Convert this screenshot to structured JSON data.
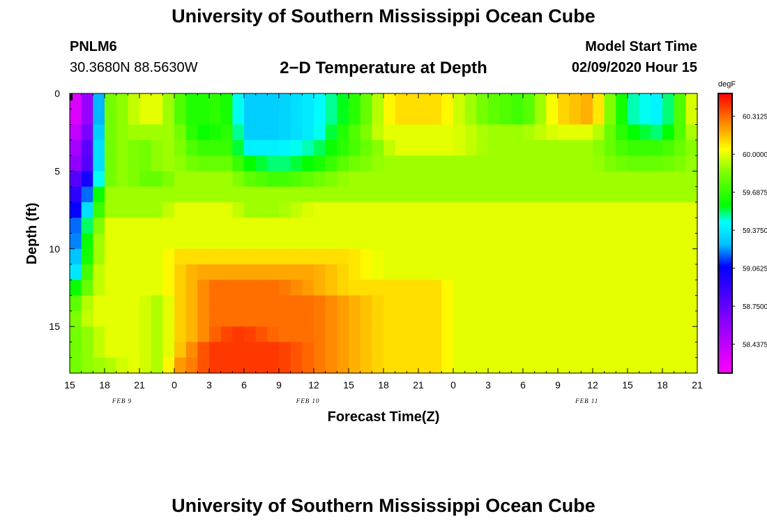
{
  "page": {
    "title": "University of Southern Mississippi Ocean Cube",
    "bottom_title": "University of Southern Mississippi Ocean Cube",
    "station": "PNLM6",
    "coords": "30.3680N 88.5630W",
    "plot_title": "2−D Temperature at Depth",
    "start_label": "Model Start Time",
    "start_value": "02/09/2020 Hour 15"
  },
  "chart_data": {
    "type": "heatmap",
    "title": "2−D Temperature at Depth",
    "xlabel": "Forecast Time(Z)",
    "ylabel": "Depth (ft)",
    "x_ticks": [
      "15",
      "18",
      "21",
      "0",
      "3",
      "6",
      "9",
      "12",
      "15",
      "18",
      "21",
      "0",
      "3",
      "6",
      "9",
      "12",
      "15",
      "18",
      "21"
    ],
    "date_labels": [
      {
        "label": "FEB 9",
        "hour_index": 4.5
      },
      {
        "label": "FEB 10",
        "hour_index": 20.5
      },
      {
        "label": "FEB 11",
        "hour_index": 44.5
      }
    ],
    "y_ticks": [
      0,
      5,
      10,
      15
    ],
    "ylim": [
      0,
      18
    ],
    "xlim_hours": [
      0,
      54
    ],
    "colorbar": {
      "unit": "degF",
      "ticks": [
        "60.3125",
        "60.0000",
        "59.6875",
        "59.3750",
        "59.0625",
        "58.7500",
        "58.4375"
      ],
      "range": [
        58.2,
        60.5
      ]
    },
    "depth_rows": [
      0,
      1,
      2,
      3,
      4,
      5,
      6,
      7,
      8,
      9,
      10,
      11,
      12,
      13,
      14,
      15,
      16,
      17
    ],
    "hours": [
      0,
      2,
      3,
      5,
      6,
      8,
      9,
      11,
      12,
      14,
      15,
      18,
      21,
      24,
      27,
      28,
      30,
      32,
      33,
      36,
      39,
      42,
      45,
      48,
      51,
      54
    ],
    "values_degF": [
      [
        58.2,
        58.7,
        59.8,
        59.9,
        60.0,
        60.0,
        59.8,
        59.6,
        59.7,
        59.6,
        59.3,
        59.3,
        59.4,
        59.6,
        60.0,
        60.1,
        60.1,
        60.1,
        60.0,
        59.8,
        59.7,
        60.1,
        60.2,
        59.5,
        59.4,
        60.1
      ],
      [
        58.2,
        58.7,
        59.8,
        59.9,
        60.0,
        60.0,
        59.8,
        59.6,
        59.7,
        59.6,
        59.3,
        59.3,
        59.4,
        59.6,
        60.0,
        60.1,
        60.1,
        60.1,
        60.0,
        59.8,
        59.7,
        60.1,
        60.2,
        59.5,
        59.4,
        60.1
      ],
      [
        58.3,
        58.8,
        59.8,
        59.9,
        59.9,
        59.9,
        59.9,
        59.6,
        59.6,
        59.7,
        59.3,
        59.3,
        59.4,
        59.7,
        60.0,
        60.0,
        60.0,
        60.0,
        60.0,
        59.9,
        59.9,
        60.0,
        60.0,
        59.6,
        59.5,
        60.0
      ],
      [
        58.4,
        58.9,
        59.8,
        59.9,
        59.8,
        59.9,
        59.9,
        59.7,
        59.7,
        59.7,
        59.4,
        59.4,
        59.5,
        59.7,
        59.9,
        60.0,
        60.0,
        60.0,
        60.0,
        59.9,
        59.9,
        59.9,
        59.9,
        59.7,
        59.7,
        59.9
      ],
      [
        58.5,
        58.9,
        59.8,
        59.9,
        59.8,
        59.9,
        59.9,
        59.8,
        59.8,
        59.8,
        59.6,
        59.5,
        59.6,
        59.8,
        59.9,
        59.9,
        59.9,
        59.9,
        59.9,
        59.9,
        59.9,
        59.9,
        59.9,
        59.8,
        59.8,
        59.9
      ],
      [
        58.7,
        59.1,
        59.8,
        59.9,
        59.8,
        59.8,
        59.9,
        59.9,
        59.9,
        59.9,
        59.8,
        59.7,
        59.8,
        59.9,
        59.9,
        59.9,
        59.9,
        59.9,
        59.9,
        59.9,
        59.9,
        59.9,
        59.9,
        59.9,
        59.9,
        59.9
      ],
      [
        58.8,
        59.3,
        59.9,
        59.9,
        59.9,
        59.9,
        59.9,
        59.9,
        59.9,
        59.9,
        59.9,
        59.9,
        59.9,
        59.9,
        59.9,
        59.9,
        59.9,
        59.9,
        59.9,
        59.9,
        59.9,
        59.9,
        59.9,
        59.9,
        59.9,
        59.9
      ],
      [
        58.9,
        59.5,
        59.9,
        59.9,
        59.9,
        59.9,
        60.0,
        60.0,
        60.0,
        60.0,
        59.9,
        59.9,
        60.0,
        60.0,
        60.0,
        60.0,
        60.0,
        60.0,
        60.0,
        60.0,
        60.0,
        60.0,
        60.0,
        60.0,
        60.0,
        60.0
      ],
      [
        59.0,
        59.7,
        60.0,
        60.0,
        60.0,
        60.0,
        60.0,
        60.0,
        60.0,
        60.0,
        60.0,
        60.0,
        60.0,
        60.0,
        60.0,
        60.0,
        60.0,
        60.0,
        60.0,
        60.0,
        60.0,
        60.0,
        60.0,
        60.0,
        60.0,
        60.0
      ],
      [
        59.0,
        59.8,
        60.0,
        60.0,
        60.0,
        60.0,
        60.0,
        60.0,
        60.0,
        60.0,
        60.0,
        60.0,
        60.0,
        60.0,
        60.0,
        60.0,
        60.0,
        60.0,
        60.0,
        60.0,
        60.0,
        60.0,
        60.0,
        60.0,
        60.0,
        60.0
      ],
      [
        59.1,
        59.8,
        60.0,
        60.0,
        60.0,
        60.0,
        60.1,
        60.1,
        60.1,
        60.1,
        60.1,
        60.1,
        60.1,
        60.1,
        60.0,
        60.0,
        60.0,
        60.0,
        60.0,
        60.0,
        60.0,
        60.0,
        60.0,
        60.0,
        60.0,
        60.0
      ],
      [
        59.2,
        59.9,
        60.0,
        60.0,
        60.0,
        60.0,
        60.1,
        60.2,
        60.2,
        60.2,
        60.2,
        60.2,
        60.2,
        60.1,
        60.0,
        60.0,
        60.0,
        60.0,
        60.0,
        60.0,
        60.0,
        60.0,
        60.0,
        60.0,
        60.0,
        60.0
      ],
      [
        59.5,
        59.9,
        60.0,
        60.0,
        60.0,
        60.0,
        60.1,
        60.2,
        60.3,
        60.3,
        60.3,
        60.3,
        60.2,
        60.1,
        60.1,
        60.1,
        60.1,
        60.1,
        60.0,
        60.0,
        60.0,
        60.0,
        60.0,
        60.0,
        60.0,
        60.0
      ],
      [
        59.7,
        60.0,
        60.0,
        60.0,
        60.0,
        59.9,
        60.1,
        60.2,
        60.3,
        60.3,
        60.3,
        60.3,
        60.3,
        60.2,
        60.1,
        60.1,
        60.1,
        60.1,
        60.0,
        60.0,
        60.0,
        60.0,
        60.0,
        60.0,
        60.0,
        60.0
      ],
      [
        59.8,
        60.0,
        60.0,
        60.0,
        60.0,
        59.9,
        60.1,
        60.2,
        60.3,
        60.3,
        60.3,
        60.3,
        60.3,
        60.2,
        60.1,
        60.1,
        60.1,
        60.1,
        60.0,
        60.0,
        60.0,
        60.0,
        60.0,
        60.0,
        60.0,
        60.0
      ],
      [
        59.8,
        59.9,
        60.0,
        60.0,
        60.0,
        59.9,
        60.1,
        60.2,
        60.3,
        60.4,
        60.4,
        60.3,
        60.3,
        60.2,
        60.1,
        60.1,
        60.1,
        60.1,
        60.0,
        60.0,
        60.0,
        60.0,
        60.0,
        60.0,
        60.0,
        60.0
      ],
      [
        59.8,
        59.9,
        60.0,
        60.0,
        60.0,
        59.9,
        60.1,
        60.3,
        60.4,
        60.4,
        60.4,
        60.4,
        60.3,
        60.2,
        60.1,
        60.1,
        60.1,
        60.1,
        60.0,
        60.0,
        60.0,
        60.0,
        60.0,
        60.0,
        60.0,
        60.0
      ],
      [
        59.8,
        59.9,
        59.9,
        60.0,
        60.0,
        59.9,
        60.2,
        60.3,
        60.4,
        60.4,
        60.4,
        60.4,
        60.3,
        60.2,
        60.1,
        60.1,
        60.1,
        60.1,
        60.0,
        60.0,
        60.0,
        60.0,
        60.0,
        60.0,
        60.0,
        60.0
      ]
    ]
  }
}
